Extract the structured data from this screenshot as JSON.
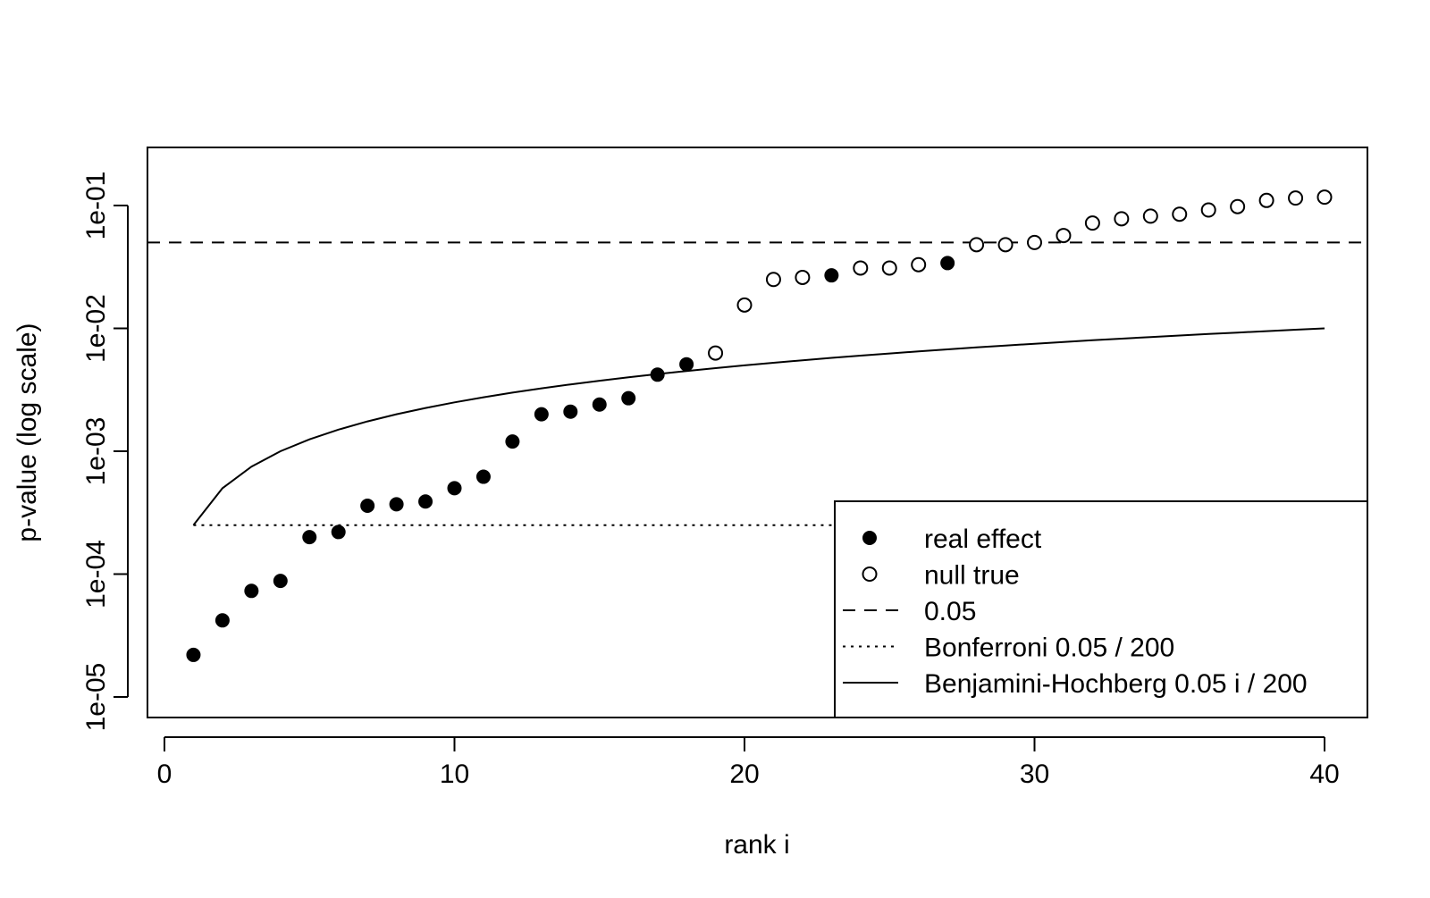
{
  "chart_data": {
    "type": "scatter",
    "title": "",
    "xlabel": "rank i",
    "ylabel": "p-value (log scale)",
    "y_scale": "log",
    "x_range": [
      0,
      40
    ],
    "y_range": [
      1e-05,
      0.1
    ],
    "x_ticks": [
      0,
      10,
      20,
      30,
      40
    ],
    "x_tick_labels": [
      "0",
      "10",
      "20",
      "30",
      "40"
    ],
    "y_ticks": [
      1e-05,
      0.0001,
      0.001,
      0.01,
      0.1
    ],
    "y_tick_labels": [
      "1e-05",
      "1e-04",
      "1e-03",
      "1e-02",
      "1e-01"
    ],
    "grid": false,
    "legend_position": "bottom-right",
    "series": [
      {
        "name": "real effect",
        "marker": "filled-circle",
        "points": [
          [
            1,
            2.2e-05
          ],
          [
            2,
            4.2e-05
          ],
          [
            3,
            7.3e-05
          ],
          [
            4,
            8.8e-05
          ],
          [
            5,
            0.0002
          ],
          [
            6,
            0.00022
          ],
          [
            7,
            0.00036
          ],
          [
            8,
            0.00037
          ],
          [
            9,
            0.00039
          ],
          [
            10,
            0.0005
          ],
          [
            11,
            0.00062
          ],
          [
            12,
            0.0012
          ],
          [
            13,
            0.002
          ],
          [
            14,
            0.0021
          ],
          [
            15,
            0.0024
          ],
          [
            16,
            0.0027
          ],
          [
            17,
            0.0042
          ],
          [
            18,
            0.0051
          ],
          [
            23,
            0.027
          ],
          [
            27,
            0.034
          ]
        ]
      },
      {
        "name": "null true",
        "marker": "open-circle",
        "points": [
          [
            19,
            0.0063
          ],
          [
            20,
            0.0155
          ],
          [
            21,
            0.025
          ],
          [
            22,
            0.026
          ],
          [
            24,
            0.031
          ],
          [
            25,
            0.031
          ],
          [
            26,
            0.033
          ],
          [
            28,
            0.048
          ],
          [
            29,
            0.048
          ],
          [
            30,
            0.05
          ],
          [
            31,
            0.057
          ],
          [
            32,
            0.072
          ],
          [
            33,
            0.078
          ],
          [
            34,
            0.082
          ],
          [
            35,
            0.085
          ],
          [
            36,
            0.092
          ],
          [
            37,
            0.098
          ],
          [
            38,
            0.11
          ],
          [
            39,
            0.115
          ],
          [
            40,
            0.117
          ]
        ]
      }
    ],
    "lines": [
      {
        "name": "0.05",
        "style": "dashed",
        "y": 0.05
      },
      {
        "name": "Bonferroni 0.05 / 200",
        "style": "dotted",
        "y": 0.00025,
        "x_start": 1
      },
      {
        "name": "Benjamini-Hochberg 0.05 i / 200",
        "style": "solid",
        "formula": "0.05 i / 200",
        "x_from": 1,
        "x_to": 40
      }
    ],
    "legend": [
      {
        "label": "real effect",
        "symbol": "filled-circle"
      },
      {
        "label": "null true",
        "symbol": "open-circle"
      },
      {
        "label": "0.05",
        "symbol": "dashed"
      },
      {
        "label": "Bonferroni 0.05 / 200",
        "symbol": "dotted"
      },
      {
        "label": "Benjamini-Hochberg 0.05 i / 200",
        "symbol": "solid"
      }
    ]
  }
}
